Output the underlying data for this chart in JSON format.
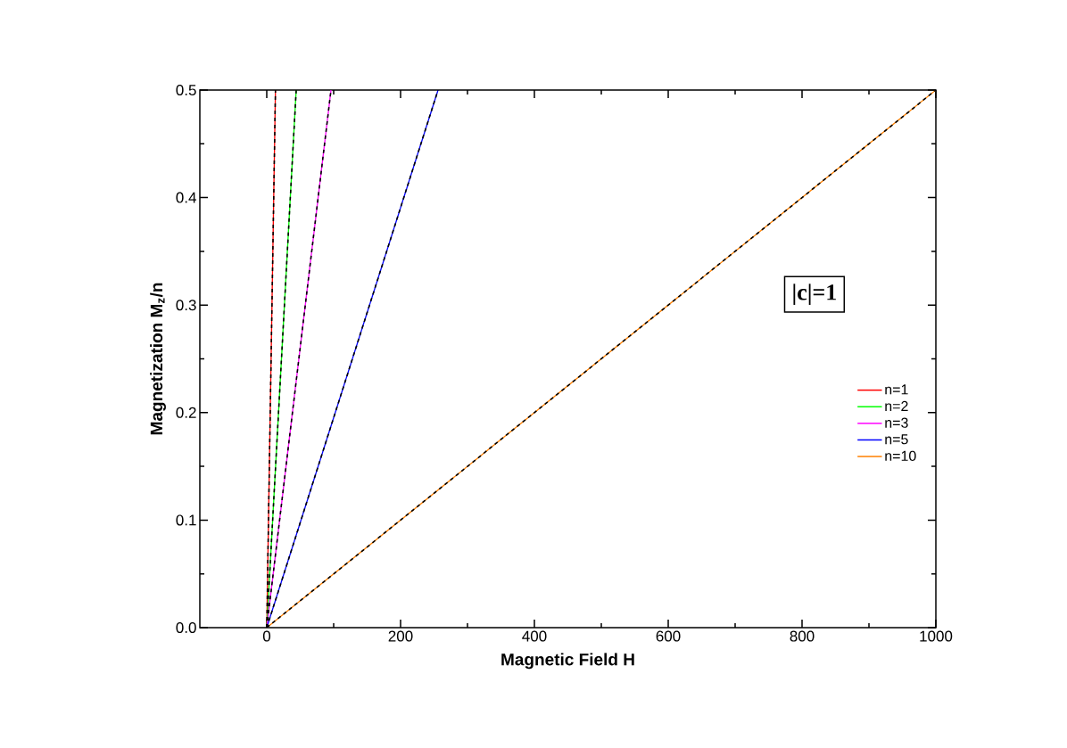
{
  "chart_data": {
    "type": "line",
    "xlabel": "Magnetic Field H",
    "ylabel": "Magnetization  M$_{z}$/n",
    "xlim": [
      -100,
      1000
    ],
    "ylim": [
      0,
      0.5
    ],
    "xticks": [
      0,
      200,
      400,
      600,
      800,
      1000
    ],
    "yticks": [
      {
        "value": 0,
        "label": "0.0"
      },
      {
        "value": 0.1,
        "label": "0.1"
      },
      {
        "value": 0.2,
        "label": "0.2"
      },
      {
        "value": 0.3,
        "label": "0.3"
      },
      {
        "value": 0.4,
        "label": "0.4"
      },
      {
        "value": 0.5,
        "label": "0.5"
      }
    ],
    "annotations": [
      "|c|=1"
    ],
    "legend": "right",
    "grid": false,
    "marker": "none",
    "series": [
      {
        "name": "n=1",
        "color": "#ff0000",
        "line_style": "solid",
        "x": [
          0,
          13
        ],
        "values": [
          0,
          0.5
        ]
      },
      {
        "name": "n=2",
        "color": "#00ff00",
        "line_style": "solid",
        "x": [
          0,
          44
        ],
        "values": [
          0,
          0.5
        ]
      },
      {
        "name": "n=3",
        "color": "#ff00ff",
        "line_style": "solid",
        "x": [
          0,
          96
        ],
        "values": [
          0,
          0.5
        ]
      },
      {
        "name": "n=5",
        "color": "#0000ff",
        "line_style": "solid",
        "x": [
          0,
          256
        ],
        "values": [
          0,
          0.5
        ]
      },
      {
        "name": "n=10",
        "color": "#ff8000",
        "line_style": "solid",
        "x": [
          0,
          1000
        ],
        "values": [
          0,
          0.5
        ]
      },
      {
        "color": "#000000",
        "line_style": "dashed",
        "x": [
          0,
          13
        ],
        "values": [
          0,
          0.5
        ]
      },
      {
        "color": "#000000",
        "line_style": "dashed",
        "x": [
          0,
          44
        ],
        "values": [
          0,
          0.5
        ]
      },
      {
        "color": "#000000",
        "line_style": "dashed",
        "x": [
          0,
          96
        ],
        "values": [
          0,
          0.5
        ]
      },
      {
        "color": "#000000",
        "line_style": "dashed",
        "x": [
          0,
          256
        ],
        "values": [
          0,
          0.5
        ]
      },
      {
        "color": "#000000",
        "line_style": "dashed",
        "x": [
          0,
          1000
        ],
        "values": [
          0,
          0.5
        ]
      }
    ]
  }
}
